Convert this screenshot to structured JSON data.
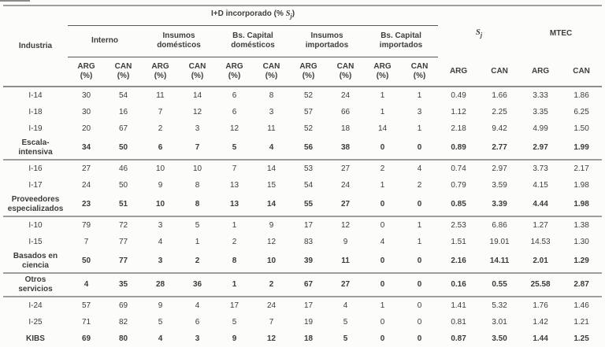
{
  "table": {
    "industria_label": "Industria",
    "span_title": {
      "prefix": "I+D incorporado (% ",
      "var": "S",
      "sub": "j",
      "suffix": ")"
    },
    "groups": [
      "Interno",
      "Insumos\ndomésticos",
      "Bs. Capital\ndomésticos",
      "Insumos\nimportados",
      "Bs. Capital\nimportados"
    ],
    "sj_header": {
      "var": "S",
      "sub": "j"
    },
    "mtec_label": "MTEC",
    "subheaders": [
      {
        "top": "ARG",
        "bottom": "(%)"
      },
      {
        "top": "CAN",
        "bottom": "(%)"
      },
      {
        "top": "ARG",
        "bottom": "(%)"
      },
      {
        "top": "CAN",
        "bottom": "(%)"
      },
      {
        "top": "ARG",
        "bottom": "(%)"
      },
      {
        "top": "CAN",
        "bottom": "(%)"
      },
      {
        "top": "ARG",
        "bottom": "(%)"
      },
      {
        "top": "CAN",
        "bottom": "(%)"
      },
      {
        "top": "ARG",
        "bottom": "(%)"
      },
      {
        "top": "CAN",
        "bottom": "(%)"
      },
      {
        "top": "ARG",
        "bottom": ""
      },
      {
        "top": "CAN",
        "bottom": ""
      },
      {
        "top": "ARG",
        "bottom": ""
      },
      {
        "top": "CAN",
        "bottom": ""
      }
    ],
    "sections": [
      {
        "rows": [
          {
            "label": "I-14",
            "bold": false,
            "values": [
              "30",
              "54",
              "11",
              "14",
              "6",
              "8",
              "52",
              "24",
              "1",
              "1",
              "0.49",
              "1.66",
              "3.33",
              "1.86"
            ]
          },
          {
            "label": "I-18",
            "bold": false,
            "values": [
              "30",
              "16",
              "7",
              "12",
              "6",
              "3",
              "57",
              "66",
              "1",
              "3",
              "1.12",
              "2.25",
              "3.35",
              "6.25"
            ]
          },
          {
            "label": "I-19",
            "bold": false,
            "values": [
              "20",
              "67",
              "2",
              "3",
              "12",
              "11",
              "52",
              "18",
              "14",
              "1",
              "2.18",
              "9.42",
              "4.99",
              "1.50"
            ]
          },
          {
            "label": "Escala-\nintensiva",
            "bold": true,
            "values": [
              "34",
              "50",
              "6",
              "7",
              "5",
              "4",
              "56",
              "38",
              "0",
              "0",
              "0.89",
              "2.77",
              "2.97",
              "1.99"
            ]
          }
        ]
      },
      {
        "rows": [
          {
            "label": "I-16",
            "bold": false,
            "values": [
              "27",
              "46",
              "10",
              "10",
              "7",
              "14",
              "53",
              "27",
              "2",
              "4",
              "0.74",
              "2.97",
              "3.73",
              "2.17"
            ]
          },
          {
            "label": "I-17",
            "bold": false,
            "values": [
              "24",
              "50",
              "9",
              "8",
              "13",
              "15",
              "54",
              "24",
              "1",
              "2",
              "0.79",
              "3.59",
              "4.15",
              "1.98"
            ]
          },
          {
            "label": "Proveedores\nespecializados",
            "bold": true,
            "values": [
              "23",
              "51",
              "10",
              "8",
              "13",
              "14",
              "55",
              "27",
              "0",
              "0",
              "0.85",
              "3.39",
              "4.44",
              "1.98"
            ]
          }
        ]
      },
      {
        "rows": [
          {
            "label": "I-10",
            "bold": false,
            "values": [
              "79",
              "72",
              "3",
              "5",
              "1",
              "9",
              "17",
              "12",
              "0",
              "1",
              "2.53",
              "6.86",
              "1.27",
              "1.38"
            ]
          },
          {
            "label": "I-15",
            "bold": false,
            "values": [
              "7",
              "77",
              "4",
              "1",
              "2",
              "12",
              "83",
              "9",
              "4",
              "1",
              "1.51",
              "19.01",
              "14.53",
              "1.30"
            ]
          },
          {
            "label": "Basados en\nciencia",
            "bold": true,
            "values": [
              "50",
              "77",
              "3",
              "2",
              "8",
              "10",
              "39",
              "11",
              "0",
              "0",
              "2.16",
              "14.11",
              "2.01",
              "1.29"
            ]
          }
        ]
      },
      {
        "rows": [
          {
            "label": "Otros\nservicios",
            "bold": true,
            "values": [
              "4",
              "35",
              "28",
              "36",
              "1",
              "2",
              "67",
              "27",
              "0",
              "0",
              "0.16",
              "0.55",
              "25.58",
              "2.87"
            ]
          }
        ]
      },
      {
        "rows": [
          {
            "label": "I-24",
            "bold": false,
            "values": [
              "57",
              "69",
              "9",
              "4",
              "17",
              "24",
              "17",
              "4",
              "1",
              "0",
              "1.41",
              "5.32",
              "1.76",
              "1.46"
            ]
          },
          {
            "label": "I-25",
            "bold": false,
            "values": [
              "71",
              "82",
              "5",
              "6",
              "5",
              "7",
              "19",
              "5",
              "0",
              "0",
              "0.81",
              "3.01",
              "1.42",
              "1.21"
            ]
          },
          {
            "label": "KIBS",
            "bold": true,
            "values": [
              "69",
              "80",
              "4",
              "3",
              "9",
              "12",
              "18",
              "5",
              "0",
              "0",
              "0.87",
              "3.50",
              "1.44",
              "1.25"
            ]
          }
        ]
      }
    ]
  }
}
